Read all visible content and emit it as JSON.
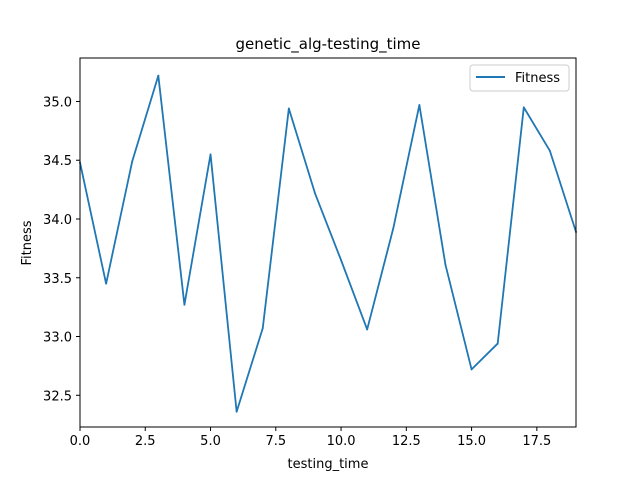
{
  "chart_data": {
    "type": "line",
    "title": "genetic_alg-testing_time",
    "xlabel": "testing_time",
    "ylabel": "Fitness",
    "xlim": [
      0,
      19
    ],
    "ylim": [
      32.23,
      35.37
    ],
    "x": [
      0,
      1,
      2,
      3,
      4,
      5,
      6,
      7,
      8,
      9,
      10,
      11,
      12,
      13,
      14,
      15,
      16,
      17,
      18,
      19
    ],
    "series": [
      {
        "name": "Fitness",
        "color": "#1f77b4",
        "values": [
          34.48,
          33.45,
          34.49,
          35.22,
          33.27,
          34.55,
          32.36,
          33.07,
          34.94,
          34.22,
          33.65,
          33.06,
          33.92,
          34.97,
          33.61,
          32.72,
          32.94,
          34.95,
          34.58,
          33.89
        ]
      }
    ],
    "xticks": [
      0.0,
      2.5,
      5.0,
      7.5,
      10.0,
      12.5,
      15.0,
      17.5
    ],
    "xtick_labels": [
      "0.0",
      "2.5",
      "5.0",
      "7.5",
      "10.0",
      "12.5",
      "15.0",
      "17.5"
    ],
    "yticks": [
      32.5,
      33.0,
      33.5,
      34.0,
      34.5,
      35.0
    ],
    "ytick_labels": [
      "32.5",
      "33.0",
      "33.5",
      "34.0",
      "34.5",
      "35.0"
    ],
    "legend": "top-right",
    "grid": false
  }
}
